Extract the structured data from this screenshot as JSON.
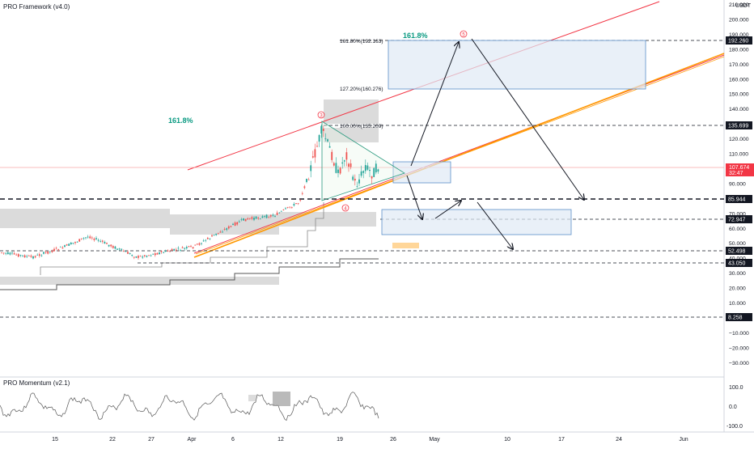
{
  "header": {
    "indicator_main": "PRO Framework (v4.0)",
    "currency": "USDT"
  },
  "momentum": {
    "title": "PRO Momentum (v2.1)",
    "axis_labels": [
      "100.0",
      "0.0",
      "-100.0"
    ]
  },
  "price_axis": {
    "tick_labels": [
      "210.000",
      "200.000",
      "190.000",
      "180.000",
      "170.000",
      "160.000",
      "150.000",
      "140.000",
      "130.000",
      "120.000",
      "110.000",
      "100.000",
      "90.000",
      "80.000",
      "70.000",
      "60.000",
      "50.000",
      "40.000",
      "30.000",
      "20.000",
      "10.000",
      "0.000",
      "−10.000",
      "−20.000",
      "−30.000"
    ],
    "current_price": "107.674",
    "countdown": "32:47",
    "levels": [
      "192.260",
      "135.699",
      "85.944",
      "72.947",
      "52.498",
      "43.050",
      "8.258"
    ]
  },
  "time_axis": {
    "labels": [
      "15",
      "22",
      "27",
      "Apr",
      "6",
      "12",
      "19",
      "26",
      "May",
      "10",
      "17",
      "24",
      "Jun"
    ]
  },
  "annotations": {
    "fib_top_label": "161.8%",
    "fib_left_label": "161.8%",
    "fib_161_line": "161.80%(192.163)",
    "fib_127_line": "127.20%(160.276)",
    "fib_100_line": "100.00%(135.209)",
    "wave_3": "3",
    "wave_4": "4",
    "wave_5": "5"
  },
  "colors": {
    "background": "#ffffff",
    "candle_up": "#26a69a",
    "candle_down": "#ef5350",
    "trend_orange": "#ff9800",
    "channel_red": "#f23645",
    "fib_teal": "#089981",
    "zone_blue": "#2962ff",
    "grey_zone": "#c8c8c8"
  }
}
